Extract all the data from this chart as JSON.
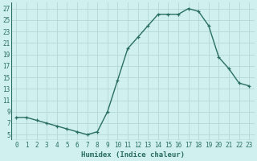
{
  "x": [
    0,
    1,
    2,
    3,
    4,
    5,
    6,
    7,
    8,
    9,
    10,
    11,
    12,
    13,
    14,
    15,
    16,
    17,
    18,
    19,
    20,
    21,
    22,
    23
  ],
  "y": [
    8,
    8,
    7.5,
    7,
    6.5,
    6,
    5.5,
    5,
    5.5,
    9,
    14.5,
    20,
    22,
    24,
    26,
    26,
    26,
    27,
    26.5,
    24,
    18.5,
    16.5,
    14,
    13.5
  ],
  "line_color": "#2a6e62",
  "marker": "+",
  "bg_color": "#cff0ee",
  "grid_color": "#b2d8d4",
  "xlabel": "Humidex (Indice chaleur)",
  "xlabel_color": "#2a6e62",
  "ylim": [
    4,
    28
  ],
  "yticks": [
    5,
    7,
    9,
    11,
    13,
    15,
    17,
    19,
    21,
    23,
    25,
    27
  ],
  "xticks": [
    0,
    1,
    2,
    3,
    4,
    5,
    6,
    7,
    8,
    9,
    10,
    11,
    12,
    13,
    14,
    15,
    16,
    17,
    18,
    19,
    20,
    21,
    22,
    23
  ],
  "xlim": [
    -0.5,
    23.5
  ],
  "tick_label_size": 5.5,
  "xlabel_size": 6.5,
  "line_width": 1.0,
  "marker_size": 3.5,
  "marker_edge_width": 0.9
}
